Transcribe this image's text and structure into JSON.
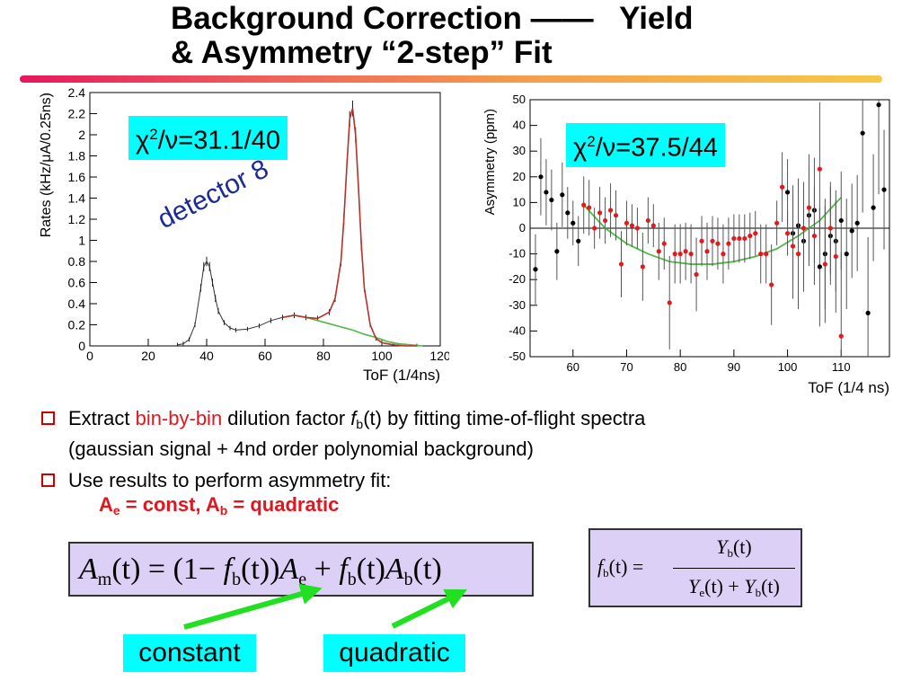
{
  "title": {
    "line1": "Background Correction ——   Yield",
    "line2": "& Asymmetry “2-step” Fit"
  },
  "left_plot": {
    "chi2_label": "=31.1/40",
    "annotation": "detector 8",
    "chart_data": {
      "type": "line",
      "xlabel": "ToF (1/4ns)",
      "ylabel": "Rates (kHz/μA/0.25ns)",
      "xlim": [
        0,
        120
      ],
      "ylim": [
        0,
        2.4
      ],
      "xticks": [
        "0",
        "20",
        "40",
        "60",
        "80",
        "100",
        "120"
      ],
      "yticks": [
        "0",
        "0.2",
        "0.4",
        "0.6",
        "0.8",
        "1",
        "1.2",
        "1.4",
        "1.6",
        "1.8",
        "2",
        "2.2",
        "2.4"
      ],
      "series": [
        {
          "values_x": [
            30,
            32,
            34,
            36,
            38,
            39,
            40,
            41,
            42,
            43,
            44,
            46,
            48,
            50,
            54,
            58,
            62,
            66,
            70,
            74,
            78,
            82,
            84,
            86,
            87,
            88,
            89,
            90,
            91,
            92,
            93,
            94,
            96,
            98,
            100,
            104,
            108,
            112
          ],
          "values_y": [
            0.01,
            0.02,
            0.06,
            0.2,
            0.55,
            0.75,
            0.8,
            0.75,
            0.6,
            0.45,
            0.33,
            0.22,
            0.17,
            0.15,
            0.16,
            0.19,
            0.24,
            0.27,
            0.29,
            0.27,
            0.26,
            0.32,
            0.45,
            0.8,
            1.2,
            1.7,
            2.15,
            2.25,
            2.0,
            1.5,
            0.95,
            0.55,
            0.2,
            0.07,
            0.03,
            0.01,
            0.0,
            0.0
          ]
        },
        {
          "values_x": [
            66,
            70,
            74,
            78,
            82,
            86,
            90,
            94,
            98,
            102,
            106,
            110,
            114
          ],
          "values_y": [
            0.27,
            0.29,
            0.27,
            0.24,
            0.21,
            0.18,
            0.15,
            0.11,
            0.08,
            0.04,
            0.02,
            0.01,
            0.0
          ]
        },
        {
          "values_x": [
            66,
            70,
            74,
            78,
            82,
            84,
            86,
            87,
            88,
            89,
            90,
            91,
            92,
            93,
            94,
            96,
            98,
            100,
            104,
            108,
            112
          ],
          "values_y": [
            0.27,
            0.29,
            0.27,
            0.26,
            0.32,
            0.45,
            0.8,
            1.2,
            1.7,
            2.15,
            2.25,
            2.0,
            1.5,
            0.95,
            0.55,
            0.2,
            0.07,
            0.03,
            0.01,
            0.0,
            0.0
          ]
        }
      ]
    }
  },
  "right_plot": {
    "chi2_label": "=37.5/44",
    "chart_data": {
      "type": "scatter",
      "xlabel": "ToF (1/4 ns)",
      "ylabel": "Asymmetry (ppm)",
      "xlim": [
        52,
        119
      ],
      "ylim": [
        -50,
        50
      ],
      "xticks": [
        "60",
        "70",
        "80",
        "90",
        "100",
        "110"
      ],
      "yticks": [
        "-50",
        "-40",
        "-30",
        "-20",
        "-10",
        "0",
        "10",
        "20",
        "30",
        "40",
        "50"
      ],
      "black_points": {
        "x": [
          53,
          54,
          55,
          56,
          57,
          58,
          59,
          60,
          61,
          100,
          101,
          102,
          103,
          104,
          105,
          106,
          107,
          108,
          109,
          110,
          111,
          112,
          113,
          114,
          115,
          116,
          117,
          118
        ],
        "y": [
          -16,
          20,
          14,
          11,
          -9,
          13,
          6,
          2,
          -5,
          14,
          -2,
          1,
          -5,
          5,
          7,
          -15,
          -10,
          -3,
          -5,
          3,
          -10,
          -1,
          2,
          37,
          -33,
          8,
          48,
          15
        ]
      },
      "red_points": {
        "x": [
          62,
          63,
          64,
          65,
          66,
          67,
          68,
          69,
          70,
          71,
          72,
          73,
          74,
          75,
          76,
          77,
          78,
          79,
          80,
          81,
          82,
          83,
          84,
          85,
          86,
          87,
          88,
          89,
          90,
          91,
          92,
          93,
          94,
          95,
          96,
          97,
          98,
          99,
          100,
          101,
          102,
          103,
          104,
          105,
          106,
          107,
          108,
          109,
          110
        ],
        "y": [
          9,
          8,
          0,
          6,
          3,
          7,
          5,
          -14,
          2,
          1,
          0,
          -15,
          3,
          1,
          -9,
          -6,
          -29,
          -10,
          -10,
          -9,
          -10,
          -18,
          -5,
          -9,
          -5,
          -6,
          -10,
          -6,
          -4,
          -4,
          -4,
          -3,
          -2,
          -10,
          -10,
          -22,
          2,
          16,
          -2,
          -7,
          -10,
          0,
          8,
          -3,
          23,
          -14,
          0,
          -11,
          -42
        ]
      },
      "fit": {
        "x": [
          62,
          66,
          70,
          74,
          78,
          82,
          86,
          90,
          94,
          98,
          102,
          106,
          110
        ],
        "y": [
          9,
          0,
          -6,
          -10,
          -13,
          -14,
          -14,
          -13,
          -11,
          -8,
          -3,
          3,
          12
        ]
      },
      "colors": {
        "black": "#000000",
        "red": "#e31a1c",
        "fit": "#52b848",
        "fit_brown": "#8b2a1a"
      }
    }
  },
  "bullets": {
    "b1_pre": "Extract ",
    "b1_red": "bin-by-bin",
    "b1_mid": " dilution factor ",
    "b1_f": "f",
    "b1_sub": "b",
    "b1_post": "(t) by fitting time-of-flight spectra",
    "b1_line2": "(gaussian signal + 4nd order polynomial background)",
    "b2": "Use results to perform asymmetry fit:",
    "b2_line_a": "A",
    "b2_sub_e": "e",
    "b2_mid": " = const, A",
    "b2_sub_b": "b",
    "b2_end": " = quadratic"
  },
  "formulas": {
    "main": {
      "A": "A",
      "m": "m",
      "t": "(t) = (1− ",
      "f": "f",
      "b": "b",
      "t2": "(t))",
      "A2": "A",
      "e": "e",
      "plus": " + ",
      "f2": "f",
      "b2": "b",
      "t3": "(t)",
      "A3": "A",
      "b3": "b",
      "t4": "(t)"
    },
    "frac": {
      "f": "f",
      "b": "b",
      "lhs": "(t) =",
      "num_Y": "Y",
      "num_b": "b",
      "num_t": "(t)",
      "den_Y1": "Y",
      "den_e": "e",
      "den_t1": "(t) + ",
      "den_Y2": "Y",
      "den_b": "b",
      "den_t2": "(t)"
    }
  },
  "labels": {
    "constant": "constant",
    "quadratic": "quadratic"
  },
  "colors": {
    "cyan": "#00ffff",
    "lavender": "#ddd0f6",
    "arrow_green": "#21e021",
    "detector_blue": "#1a2a9a"
  }
}
